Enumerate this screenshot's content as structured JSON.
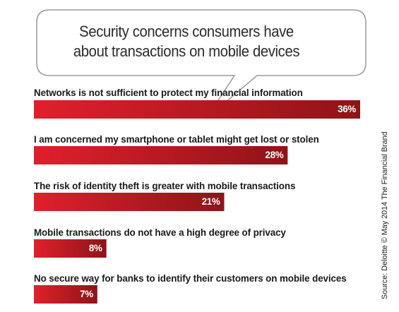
{
  "chart_data": {
    "type": "bar",
    "orientation": "horizontal",
    "title": "Security concerns consumers have about transactions on mobile devices",
    "title_lines": [
      "Security concerns consumers have",
      "about transactions on mobile devices"
    ],
    "categories": [
      "Networks is not sufficient to protect my financial information",
      "I am concerned my smartphone or tablet might get lost or stolen",
      "The risk of identity theft is greater with mobile transactions",
      "Mobile transactions do not have a high degree of privacy",
      "No secure way for banks to identify their customers on mobile devices"
    ],
    "values": [
      36,
      28,
      21,
      8,
      7
    ],
    "value_labels": [
      "36%",
      "28%",
      "21%",
      "8%",
      "7%"
    ],
    "unit": "%",
    "xlim": [
      0,
      36
    ],
    "grid": false,
    "colors": {
      "bar_start": "#e0202c",
      "bar_end": "#8e1418",
      "bubble_stroke": "#9a9a9a"
    }
  },
  "source_note": "Source: Deloitte © May 2014 The Financial Brand"
}
